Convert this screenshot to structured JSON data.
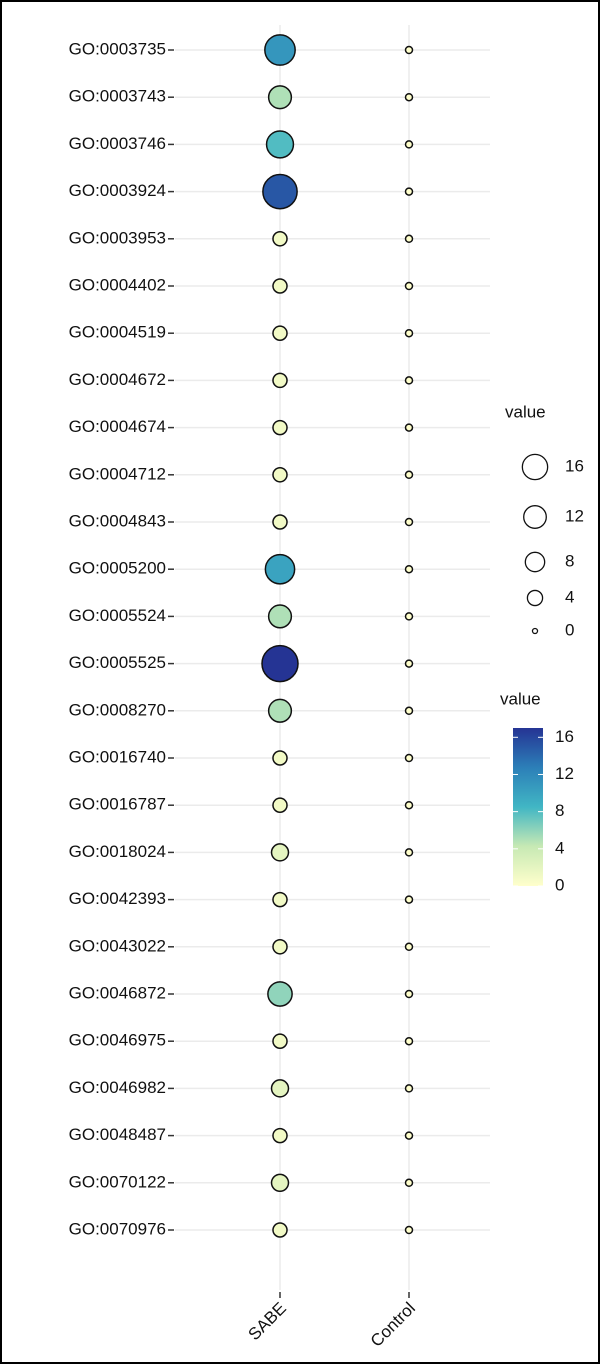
{
  "chart_data": {
    "type": "bubble",
    "categories": [
      "GO:0003735",
      "GO:0003743",
      "GO:0003746",
      "GO:0003924",
      "GO:0003953",
      "GO:0004402",
      "GO:0004519",
      "GO:0004672",
      "GO:0004674",
      "GO:0004712",
      "GO:0004843",
      "GO:0005200",
      "GO:0005524",
      "GO:0005525",
      "GO:0008270",
      "GO:0016740",
      "GO:0016787",
      "GO:0018024",
      "GO:0042393",
      "GO:0043022",
      "GO:0046872",
      "GO:0046975",
      "GO:0046982",
      "GO:0048487",
      "GO:0070122",
      "GO:0070976"
    ],
    "series": [
      {
        "name": "SABE",
        "values": [
          11,
          5,
          8,
          15,
          1,
          1,
          1,
          1,
          1,
          1,
          1,
          10,
          5,
          17,
          5,
          1,
          1,
          2,
          1,
          1,
          6,
          1,
          2,
          1,
          2,
          1
        ]
      },
      {
        "name": "Control",
        "values": [
          0,
          0,
          0,
          0,
          0,
          0,
          0,
          0,
          0,
          0,
          0,
          0,
          0,
          0,
          0,
          0,
          0,
          0,
          0,
          0,
          0,
          0,
          0,
          0,
          0,
          0
        ]
      }
    ],
    "grid": true,
    "size_legend": {
      "title": "value",
      "values": [
        16,
        12,
        8,
        4,
        0
      ],
      "lim": [
        0,
        17
      ]
    },
    "color_legend": {
      "title": "value",
      "ticks": [
        16,
        12,
        8,
        4,
        0
      ],
      "lim": [
        0,
        17
      ],
      "colors": [
        "#ffffcc",
        "#c7e9b4",
        "#41b6c4",
        "#2c7fb8",
        "#253494"
      ]
    }
  }
}
